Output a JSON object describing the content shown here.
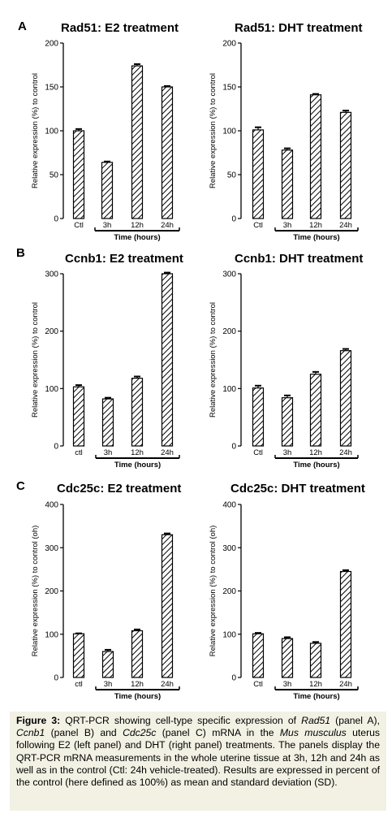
{
  "panels": {
    "A": {
      "letter": "A"
    },
    "B": {
      "letter": "B"
    },
    "C": {
      "letter": "C"
    }
  },
  "caption": {
    "label": "Figure 3:",
    "seg1": " QRT-PCR showing cell-type specific expression of ",
    "gene1": "Rad51",
    "seg2": " (panel A), ",
    "gene2": "Ccnb1",
    "seg3": " (panel B) and ",
    "gene3": "Cdc25c",
    "seg4": " (panel C) mRNA in the ",
    "species": "Mus musculus",
    "seg5": " uterus following E2 (left panel) and DHT (right panel) treatments. The panels display the QRT-PCR mRNA measurements in the whole uterine tissue at 3h, 12h and 24h as well as in the control (Ctl: 24h vehicle-treated). Results are expressed in percent of the control (here defined as 100%) as mean and standard deviation (SD)."
  },
  "chart_data": [
    {
      "type": "bar",
      "title": "Rad51: E2 treatment",
      "ylabel": "Relative expression (%) to control",
      "xlabel": "Time (hours)",
      "categories": [
        "Ctl",
        "3h",
        "12h",
        "24h"
      ],
      "values": [
        100,
        64,
        174,
        150
      ],
      "errors": [
        2,
        1,
        2,
        1
      ],
      "ylim": [
        0,
        200
      ],
      "yticks": [
        0,
        50,
        100,
        150,
        200
      ],
      "grid": false
    },
    {
      "type": "bar",
      "title": "Rad51: DHT treatment",
      "ylabel": "Relative expression (%) to control",
      "xlabel": "Time (hours)",
      "categories": [
        "Ctl",
        "3h",
        "12h",
        "24h"
      ],
      "values": [
        101,
        78,
        141,
        121
      ],
      "errors": [
        3,
        2,
        1,
        2
      ],
      "ylim": [
        0,
        200
      ],
      "yticks": [
        0,
        50,
        100,
        150,
        200
      ],
      "grid": false
    },
    {
      "type": "bar",
      "title": "Ccnb1: E2 treatment",
      "ylabel": "Relative expression (%) to control",
      "xlabel": "Time (hours)",
      "categories": [
        "ctl",
        "3h",
        "12h",
        "24h"
      ],
      "values": [
        103,
        82,
        118,
        300
      ],
      "errors": [
        3,
        2,
        3,
        2
      ],
      "ylim": [
        0,
        300
      ],
      "yticks": [
        0,
        100,
        200,
        300
      ],
      "grid": false
    },
    {
      "type": "bar",
      "title": "Ccnb1: DHT treatment",
      "ylabel": "Relative expression (%) to control",
      "xlabel": "Time (hours)",
      "categories": [
        "Ctl",
        "3h",
        "12h",
        "24h"
      ],
      "values": [
        101,
        84,
        125,
        166
      ],
      "errors": [
        4,
        4,
        4,
        3
      ],
      "ylim": [
        0,
        300
      ],
      "yticks": [
        0,
        100,
        200,
        300
      ],
      "grid": false
    },
    {
      "type": "bar",
      "title": "Cdc25c: E2 treatment",
      "ylabel": "Relative expression (%) to control (oh)",
      "xlabel": "Time (hours)",
      "categories": [
        "ctl",
        "3h",
        "12h",
        "24h"
      ],
      "values": [
        101,
        60,
        108,
        330
      ],
      "errors": [
        1,
        4,
        3,
        3
      ],
      "ylim": [
        0,
        400
      ],
      "yticks": [
        0,
        100,
        200,
        300,
        400
      ],
      "grid": false
    },
    {
      "type": "bar",
      "title": "Cdc25c: DHT treatment",
      "ylabel": "Relative expression (%) to control (oh)",
      "xlabel": "Time (hours)",
      "categories": [
        "Ctl",
        "3h",
        "12h",
        "24h"
      ],
      "values": [
        101,
        90,
        79,
        245
      ],
      "errors": [
        2,
        3,
        3,
        3
      ],
      "ylim": [
        0,
        400
      ],
      "yticks": [
        0,
        100,
        200,
        300,
        400
      ],
      "grid": false
    }
  ]
}
